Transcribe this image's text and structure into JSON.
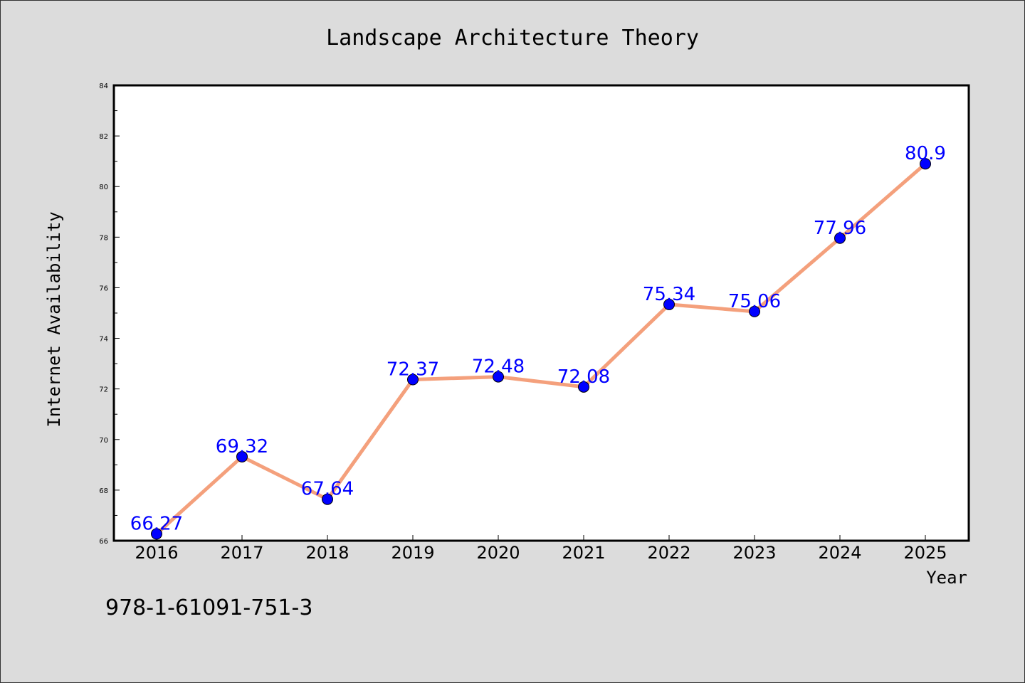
{
  "chart_data": {
    "type": "line",
    "title": "Landscape Architecture Theory",
    "xlabel": "Year",
    "ylabel": "Internet Availability",
    "categories": [
      "2016",
      "2017",
      "2018",
      "2019",
      "2020",
      "2021",
      "2022",
      "2023",
      "2024",
      "2025"
    ],
    "series": [
      {
        "values": [
          66.27,
          69.32,
          67.64,
          72.37,
          72.48,
          72.08,
          75.34,
          75.06,
          77.96,
          80.9
        ],
        "labels": [
          "66.27",
          "69.32",
          "67.64",
          "72.37",
          "72.48",
          "72.08",
          "75.34",
          "75.06",
          "77.96",
          "80.9"
        ],
        "line_color": "#f4a07c",
        "marker_color": "#0000ff"
      }
    ],
    "ylim": [
      66,
      84
    ],
    "yticks": [
      "66",
      "68",
      "70",
      "72",
      "74",
      "76",
      "78",
      "80",
      "82",
      "84"
    ],
    "grid": false,
    "label_color": "#0000ff"
  },
  "footer": {
    "text": "978-1-61091-751-3"
  }
}
